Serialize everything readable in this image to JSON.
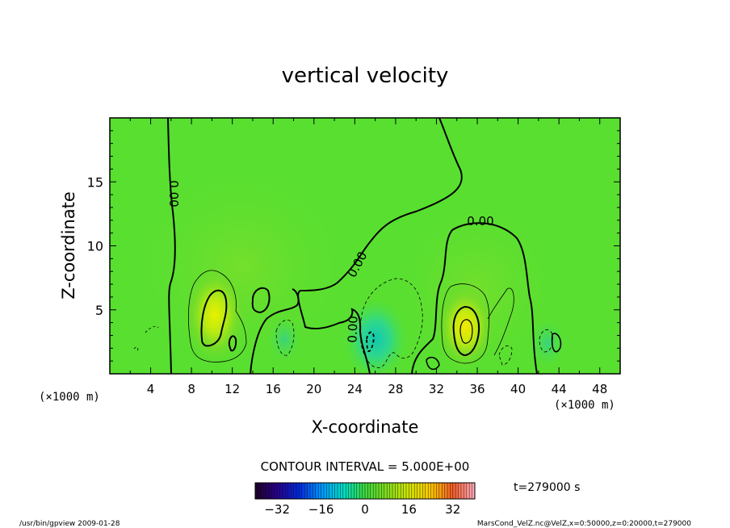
{
  "chart_data": {
    "type": "heatmap",
    "title": "vertical velocity",
    "xlabel": "X-coordinate",
    "ylabel": "Z-coordinate",
    "x_unit_left": "(×1000 m)",
    "x_unit_right": "(×1000 m)",
    "xlim": [
      0,
      50
    ],
    "ylim": [
      0,
      20
    ],
    "x_ticks": [
      4,
      8,
      12,
      16,
      20,
      24,
      28,
      32,
      36,
      40,
      44,
      48
    ],
    "x_tick_labels": [
      "4",
      "8",
      "12",
      "16",
      "20",
      "24",
      "28",
      "32",
      "36",
      "40",
      "44",
      "48"
    ],
    "y_ticks": [
      5,
      10,
      15
    ],
    "y_tick_labels": [
      "5",
      "10",
      "15"
    ],
    "contour_interval_text": "CONTOUR INTERVAL = 5.000E+00",
    "contour_labels": [
      "0.00",
      "0.00",
      "0.00",
      "0.00",
      "0.00"
    ],
    "colorbar": {
      "range": [
        -40,
        40
      ],
      "ticks": [
        -32,
        -16,
        0,
        16,
        32
      ],
      "tick_labels": [
        "−32",
        "−16",
        "0",
        "16",
        "32"
      ]
    },
    "time_label": "t=279000 s",
    "updrafts": [
      {
        "x": 10.5,
        "z": 4.5,
        "peak": 15
      },
      {
        "x": 34.8,
        "z": 3.5,
        "peak": 18
      }
    ],
    "downdrafts": [
      {
        "x": 25.5,
        "z": 2.5,
        "peak": -12
      },
      {
        "x": 42.5,
        "z": 2.5,
        "peak": -8
      }
    ]
  },
  "footer": {
    "left": "/usr/bin/gpview  2009-01-28",
    "right": "MarsCond_VelZ.nc@VelZ,x=0:50000,z=0:20000,t=279000"
  }
}
